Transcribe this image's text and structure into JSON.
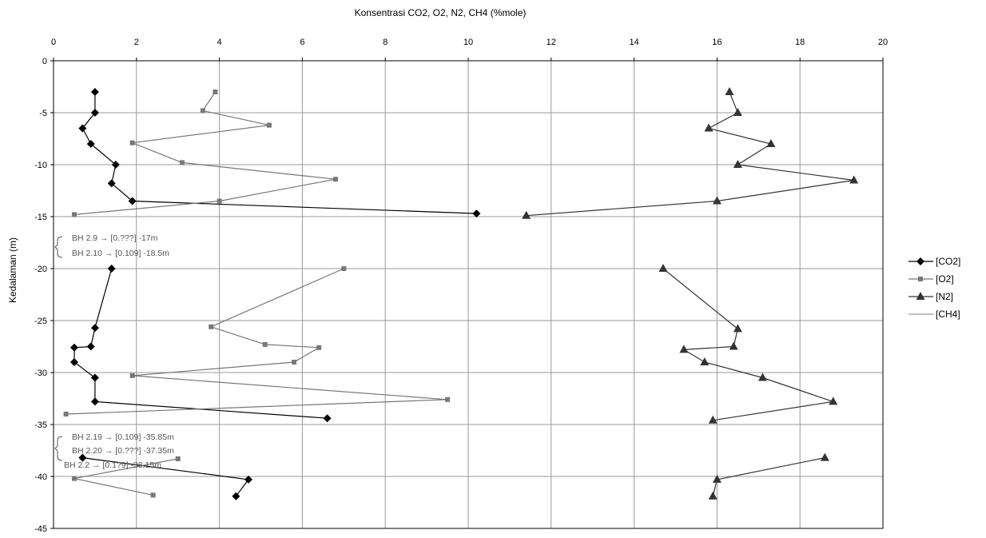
{
  "chart_data": {
    "type": "line",
    "title": "Konsentrasi CO2, O2, N2, CH4 (%mole)",
    "ylabel": "Kedalaman (m)",
    "xlabel": "",
    "xlim": [
      0,
      20
    ],
    "ylim": [
      -45,
      0
    ],
    "x_ticks": [
      "0",
      "2",
      "4",
      "6",
      "8",
      "10",
      "12",
      "14",
      "16",
      "18",
      "20"
    ],
    "y_ticks": [
      "0",
      "-5",
      "-10",
      "-15",
      "-20",
      "-25",
      "-30",
      "-35",
      "-40",
      "-45"
    ],
    "grid": true,
    "legend_position": "right",
    "series": [
      {
        "name": "[CO2]",
        "color": "#000000",
        "marker": "diamond",
        "segments": [
          [
            [
              1.0,
              -3
            ],
            [
              1.0,
              -5
            ],
            [
              0.7,
              -6.5
            ],
            [
              0.9,
              -8
            ],
            [
              1.5,
              -10
            ],
            [
              1.4,
              -11.8
            ],
            [
              1.9,
              -13.5
            ],
            [
              10.2,
              -14.7
            ]
          ],
          [
            [
              1.4,
              -20
            ],
            [
              1.0,
              -25.7
            ],
            [
              0.9,
              -27.5
            ],
            [
              0.5,
              -27.6
            ],
            [
              0.5,
              -29.0
            ],
            [
              1.0,
              -30.5
            ],
            [
              1.0,
              -32.8
            ],
            [
              6.6,
              -34.4
            ]
          ],
          [
            [
              0.7,
              -38.2
            ],
            [
              4.7,
              -40.3
            ],
            [
              4.4,
              -41.9
            ]
          ]
        ]
      },
      {
        "name": "[O2]",
        "color": "#777777",
        "marker": "square",
        "segments": [
          [
            [
              3.9,
              -3
            ],
            [
              3.6,
              -4.8
            ],
            [
              5.2,
              -6.2
            ],
            [
              1.9,
              -7.9
            ],
            [
              3.1,
              -9.8
            ],
            [
              6.8,
              -11.4
            ],
            [
              4.0,
              -13.5
            ],
            [
              0.5,
              -14.8
            ]
          ],
          [
            [
              7.0,
              -20
            ],
            [
              3.8,
              -25.6
            ],
            [
              5.1,
              -27.3
            ],
            [
              6.4,
              -27.6
            ],
            [
              5.8,
              -29.0
            ],
            [
              1.9,
              -30.3
            ],
            [
              9.5,
              -32.6
            ],
            [
              0.3,
              -34.0
            ]
          ],
          [
            [
              3.0,
              -38.3
            ],
            [
              0.5,
              -40.2
            ],
            [
              2.4,
              -41.8
            ]
          ]
        ]
      },
      {
        "name": "[N2]",
        "color": "#333333",
        "marker": "triangle",
        "segments": [
          [
            [
              16.3,
              -3
            ],
            [
              16.5,
              -5
            ],
            [
              15.8,
              -6.5
            ],
            [
              17.3,
              -8
            ],
            [
              16.5,
              -10
            ],
            [
              19.3,
              -11.5
            ],
            [
              16.0,
              -13.5
            ],
            [
              11.4,
              -14.9
            ]
          ],
          [
            [
              14.7,
              -20
            ],
            [
              16.5,
              -25.8
            ],
            [
              16.4,
              -27.5
            ],
            [
              15.2,
              -27.8
            ],
            [
              15.7,
              -29.0
            ],
            [
              17.1,
              -30.5
            ],
            [
              18.8,
              -32.8
            ],
            [
              15.9,
              -34.6
            ]
          ],
          [
            [
              18.6,
              -38.2
            ],
            [
              16.0,
              -40.3
            ],
            [
              15.9,
              -41.9
            ]
          ]
        ]
      },
      {
        "name": "[CH4]",
        "color": "#999999",
        "marker": "none",
        "segments": []
      }
    ],
    "annotations": [
      "BH 2.9 → [0.???] -17m",
      "BH 2.10 → [0.109] -18.5m",
      "BH 2.19 → [0.109] -35.85m",
      "BH 2.20 → [0.???] -37.35m",
      "BH 2.2 → [0.1?9] -38.15m"
    ]
  }
}
